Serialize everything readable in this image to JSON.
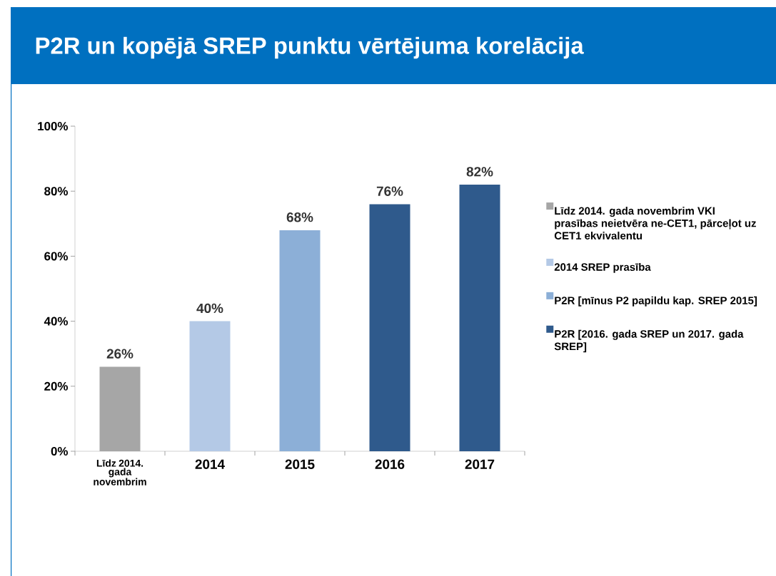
{
  "chart_data": {
    "type": "bar",
    "title": "P2R un kopējā SREP punktu vērtējuma korelācija",
    "categories": [
      "Līdz 2014. gada novembrim",
      "2014",
      "2015",
      "2016",
      "2017"
    ],
    "series": [
      {
        "name": "Līdz 2014. gada novembrim VKI prasības neietvēra ne-CET1, pārceļot uz CET1 ekvivalentu",
        "color": "#a6a6a6",
        "values": [
          26,
          null,
          null,
          null,
          null
        ],
        "value_labels": [
          "26%",
          null,
          null,
          null,
          null
        ]
      },
      {
        "name": "2014 SREP prasība",
        "color": "#b4c9e6",
        "values": [
          null,
          40,
          null,
          null,
          null
        ],
        "value_labels": [
          null,
          "40%",
          null,
          null,
          null
        ]
      },
      {
        "name": "P2R [mīnus P2 papildu kap. SREP 2015]",
        "color": "#8cafd7",
        "values": [
          null,
          null,
          68,
          null,
          null
        ],
        "value_labels": [
          null,
          null,
          "68%",
          null,
          null
        ]
      },
      {
        "name": "P2R [2016. gada SREP un 2017. gada SREP]",
        "color": "#2f5a8c",
        "values": [
          null,
          null,
          null,
          76,
          82
        ],
        "value_labels": [
          null,
          null,
          null,
          "76%",
          "82%"
        ]
      }
    ],
    "ylim": [
      0,
      100
    ],
    "yticks": [
      {
        "value": 0,
        "label": "0%"
      },
      {
        "value": 20,
        "label": "20%"
      },
      {
        "value": 40,
        "label": "40%"
      },
      {
        "value": 60,
        "label": "60%"
      },
      {
        "value": 80,
        "label": "80%"
      },
      {
        "value": 100,
        "label": "100%"
      }
    ],
    "legend": "right"
  }
}
